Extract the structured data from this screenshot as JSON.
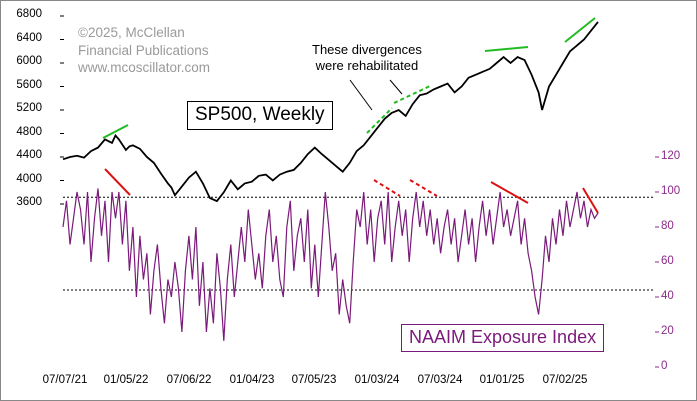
{
  "watermark": {
    "line1": "©2025, McClellan",
    "line2": "Financial Publications",
    "line3": "www.mcoscillator.com"
  },
  "annotation": {
    "line1": "These divergences",
    "line2": "were rehabilitated"
  },
  "colors": {
    "price_line": "#000000",
    "naaim_line": "#7a1a7a",
    "divergence_up": "#22bb22",
    "divergence_down": "#dd1111",
    "axis_right": "#8a2a8a"
  },
  "chart_data": [
    {
      "type": "line",
      "title": "SP500, Weekly",
      "ylabel": "",
      "y_ticks": [
        "6800",
        "6400",
        "6000",
        "5600",
        "5200",
        "4800",
        "4400",
        "4000",
        "3600"
      ],
      "ylim": [
        3600,
        6800
      ],
      "x_ticks": [
        "07/07/21",
        "01/05/22",
        "07/06/22",
        "01/04/23",
        "07/05/23",
        "01/03/24",
        "07/03/24",
        "01/01/25",
        "07/02/25"
      ],
      "series": [
        {
          "points": [
            [
              0,
              4360
            ],
            [
              4,
              4400
            ],
            [
              8,
              4420
            ],
            [
              12,
              4390
            ],
            [
              16,
              4500
            ],
            [
              20,
              4560
            ],
            [
              24,
              4700
            ],
            [
              28,
              4640
            ],
            [
              30,
              4766
            ],
            [
              32,
              4700
            ],
            [
              36,
              4520
            ],
            [
              38,
              4580
            ],
            [
              40,
              4600
            ],
            [
              44,
              4540
            ],
            [
              48,
              4400
            ],
            [
              52,
              4300
            ],
            [
              56,
              4120
            ],
            [
              60,
              3950
            ],
            [
              62,
              3880
            ],
            [
              64,
              3750
            ],
            [
              68,
              3900
            ],
            [
              72,
              4050
            ],
            [
              76,
              4150
            ],
            [
              80,
              3950
            ],
            [
              84,
              3700
            ],
            [
              88,
              3650
            ],
            [
              92,
              3800
            ],
            [
              96,
              4000
            ],
            [
              100,
              3850
            ],
            [
              104,
              3950
            ],
            [
              108,
              3980
            ],
            [
              112,
              4080
            ],
            [
              116,
              4100
            ],
            [
              120,
              4000
            ],
            [
              124,
              4100
            ],
            [
              128,
              4150
            ],
            [
              132,
              4180
            ],
            [
              136,
              4300
            ],
            [
              140,
              4450
            ],
            [
              144,
              4560
            ],
            [
              148,
              4450
            ],
            [
              152,
              4350
            ],
            [
              156,
              4250
            ],
            [
              160,
              4150
            ],
            [
              164,
              4300
            ],
            [
              168,
              4500
            ],
            [
              172,
              4600
            ],
            [
              176,
              4750
            ],
            [
              180,
              4900
            ],
            [
              184,
              5050
            ],
            [
              188,
              5150
            ],
            [
              192,
              5200
            ],
            [
              196,
              5100
            ],
            [
              200,
              5300
            ],
            [
              204,
              5450
            ],
            [
              208,
              5480
            ],
            [
              212,
              5550
            ],
            [
              216,
              5600
            ],
            [
              220,
              5650
            ],
            [
              224,
              5500
            ],
            [
              228,
              5600
            ],
            [
              232,
              5750
            ],
            [
              236,
              5800
            ],
            [
              240,
              5850
            ],
            [
              244,
              5900
            ],
            [
              248,
              6000
            ],
            [
              252,
              6100
            ],
            [
              256,
              6000
            ],
            [
              260,
              6100
            ],
            [
              264,
              6050
            ],
            [
              268,
              5800
            ],
            [
              272,
              5500
            ],
            [
              274,
              5200
            ],
            [
              278,
              5600
            ],
            [
              282,
              5800
            ],
            [
              286,
              6000
            ],
            [
              290,
              6200
            ],
            [
              294,
              6300
            ],
            [
              298,
              6400
            ],
            [
              302,
              6550
            ],
            [
              306,
              6700
            ]
          ]
        }
      ]
    },
    {
      "type": "line",
      "title": "NAAIM Exposure Index",
      "ylabel": "",
      "y_ticks": [
        "120",
        "100",
        "80",
        "60",
        "40",
        "20",
        "0"
      ],
      "ylim": [
        0,
        120
      ],
      "reference_lines": [
        97,
        44
      ],
      "series": [
        {
          "points": [
            [
              0,
              80
            ],
            [
              2,
              95
            ],
            [
              4,
              70
            ],
            [
              6,
              85
            ],
            [
              8,
              100
            ],
            [
              10,
              90
            ],
            [
              12,
              70
            ],
            [
              14,
              100
            ],
            [
              16,
              60
            ],
            [
              18,
              85
            ],
            [
              20,
              102
            ],
            [
              22,
              75
            ],
            [
              24,
              95
            ],
            [
              26,
              60
            ],
            [
              28,
              100
            ],
            [
              30,
              85
            ],
            [
              32,
              100
            ],
            [
              34,
              70
            ],
            [
              36,
              95
            ],
            [
              38,
              55
            ],
            [
              40,
              80
            ],
            [
              42,
              40
            ],
            [
              44,
              75
            ],
            [
              46,
              50
            ],
            [
              48,
              65
            ],
            [
              50,
              30
            ],
            [
              52,
              55
            ],
            [
              54,
              70
            ],
            [
              56,
              45
            ],
            [
              58,
              25
            ],
            [
              60,
              50
            ],
            [
              62,
              40
            ],
            [
              64,
              60
            ],
            [
              66,
              45
            ],
            [
              68,
              20
            ],
            [
              70,
              55
            ],
            [
              72,
              75
            ],
            [
              74,
              50
            ],
            [
              76,
              80
            ],
            [
              78,
              35
            ],
            [
              80,
              60
            ],
            [
              82,
              20
            ],
            [
              84,
              45
            ],
            [
              86,
              25
            ],
            [
              88,
              65
            ],
            [
              90,
              45
            ],
            [
              92,
              15
            ],
            [
              94,
              50
            ],
            [
              96,
              70
            ],
            [
              98,
              40
            ],
            [
              100,
              60
            ],
            [
              102,
              80
            ],
            [
              104,
              60
            ],
            [
              106,
              90
            ],
            [
              108,
              70
            ],
            [
              110,
              50
            ],
            [
              112,
              65
            ],
            [
              114,
              45
            ],
            [
              116,
              75
            ],
            [
              118,
              90
            ],
            [
              120,
              60
            ],
            [
              122,
              75
            ],
            [
              124,
              50
            ],
            [
              126,
              40
            ],
            [
              128,
              80
            ],
            [
              130,
              95
            ],
            [
              132,
              55
            ],
            [
              134,
              75
            ],
            [
              136,
              85
            ],
            [
              138,
              60
            ],
            [
              140,
              90
            ],
            [
              142,
              45
            ],
            [
              144,
              70
            ],
            [
              146,
              40
            ],
            [
              148,
              70
            ],
            [
              150,
              100
            ],
            [
              152,
              80
            ],
            [
              154,
              55
            ],
            [
              156,
              65
            ],
            [
              158,
              30
            ],
            [
              160,
              50
            ],
            [
              162,
              35
            ],
            [
              164,
              25
            ],
            [
              166,
              60
            ],
            [
              168,
              90
            ],
            [
              170,
              80
            ],
            [
              172,
              100
            ],
            [
              174,
              70
            ],
            [
              176,
              90
            ],
            [
              178,
              60
            ],
            [
              180,
              85
            ],
            [
              182,
              95
            ],
            [
              184,
              70
            ],
            [
              186,
              100
            ],
            [
              188,
              60
            ],
            [
              190,
              80
            ],
            [
              192,
              95
            ],
            [
              194,
              75
            ],
            [
              196,
              90
            ],
            [
              198,
              60
            ],
            [
              200,
              85
            ],
            [
              202,
              100
            ],
            [
              204,
              80
            ],
            [
              206,
              95
            ],
            [
              208,
              75
            ],
            [
              210,
              90
            ],
            [
              212,
              70
            ],
            [
              214,
              85
            ],
            [
              216,
              65
            ],
            [
              218,
              80
            ],
            [
              220,
              90
            ],
            [
              222,
              70
            ],
            [
              224,
              85
            ],
            [
              226,
              60
            ],
            [
              228,
              75
            ],
            [
              230,
              90
            ],
            [
              232,
              70
            ],
            [
              234,
              85
            ],
            [
              236,
              60
            ],
            [
              238,
              80
            ],
            [
              240,
              95
            ],
            [
              242,
              75
            ],
            [
              244,
              90
            ],
            [
              246,
              70
            ],
            [
              248,
              85
            ],
            [
              250,
              100
            ],
            [
              252,
              80
            ],
            [
              254,
              90
            ],
            [
              256,
              75
            ],
            [
              258,
              85
            ],
            [
              260,
              95
            ],
            [
              262,
              70
            ],
            [
              264,
              85
            ],
            [
              266,
              65
            ],
            [
              268,
              55
            ],
            [
              270,
              40
            ],
            [
              272,
              30
            ],
            [
              274,
              50
            ],
            [
              276,
              75
            ],
            [
              278,
              60
            ],
            [
              280,
              85
            ],
            [
              282,
              70
            ],
            [
              284,
              90
            ],
            [
              286,
              75
            ],
            [
              288,
              95
            ],
            [
              290,
              80
            ],
            [
              292,
              90
            ],
            [
              294,
              100
            ],
            [
              296,
              85
            ],
            [
              298,
              95
            ],
            [
              300,
              80
            ],
            [
              302,
              90
            ],
            [
              304,
              85
            ],
            [
              306,
              88
            ]
          ]
        }
      ]
    }
  ]
}
